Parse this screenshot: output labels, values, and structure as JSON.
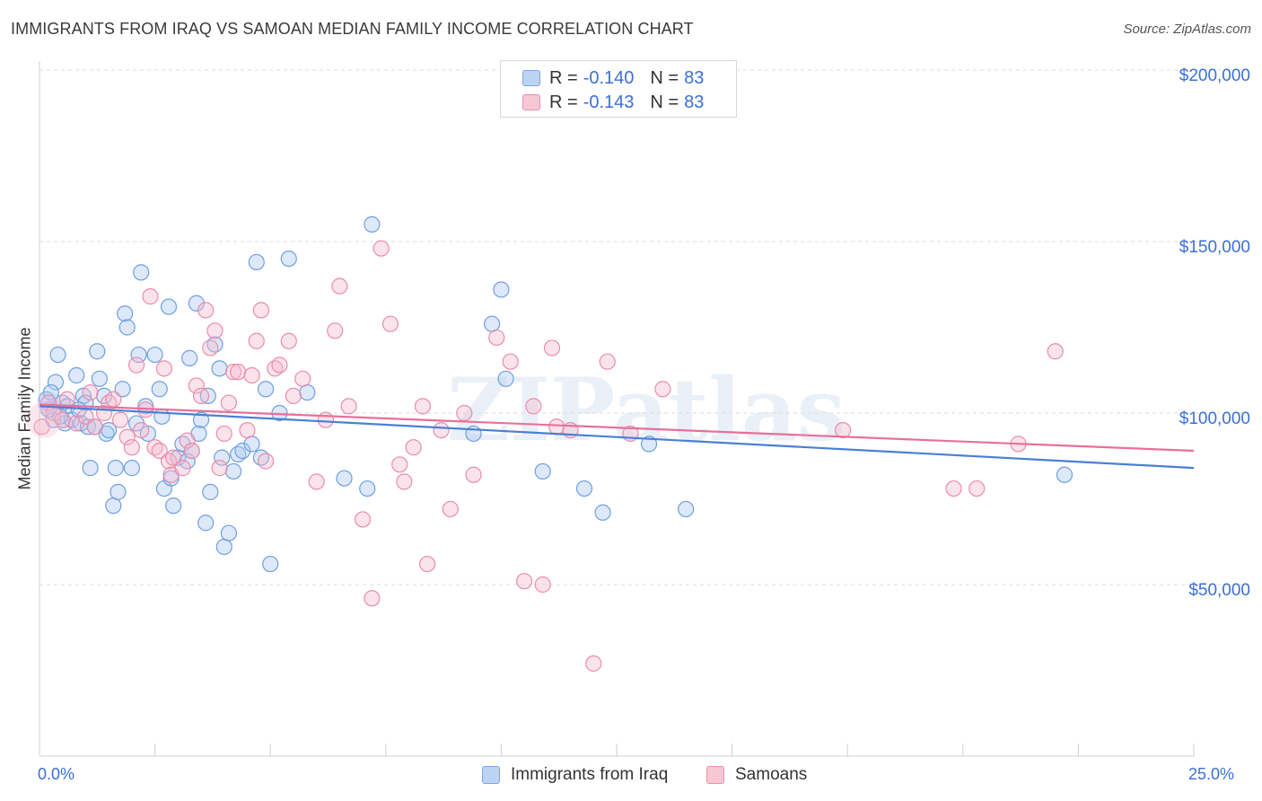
{
  "title": "IMMIGRANTS FROM IRAQ VS SAMOAN MEDIAN FAMILY INCOME CORRELATION CHART",
  "source": "Source: ZipAtlas.com",
  "watermark": "ZIPatlas",
  "legend": {
    "rows": [
      {
        "r_label": "R =",
        "r_value": "-0.140",
        "n_label": "N =",
        "n_value": "83",
        "color": "#7aa6e6",
        "fill": "#bcd3f3"
      },
      {
        "r_label": "R =",
        "r_value": "-0.143",
        "n_label": "N =",
        "n_value": "83",
        "color": "#ee8fab",
        "fill": "#f8c7d5"
      }
    ]
  },
  "bottom_legend": [
    {
      "label": "Immigrants from Iraq",
      "color": "#7aa6e6",
      "fill": "#bcd3f3"
    },
    {
      "label": "Samoans",
      "color": "#ee8fab",
      "fill": "#f8c7d5"
    }
  ],
  "chart_data": {
    "type": "scatter",
    "title": "IMMIGRANTS FROM IRAQ VS SAMOAN MEDIAN FAMILY INCOME CORRELATION CHART",
    "xlabel": "",
    "ylabel": "Median Family Income",
    "xlim": [
      0,
      25
    ],
    "ylim": [
      0,
      200000
    ],
    "x_tick_labels": [
      "0.0%",
      "25.0%"
    ],
    "y_ticks": [
      50000,
      100000,
      150000,
      200000
    ],
    "y_tick_labels": [
      "$50,000",
      "$100,000",
      "$150,000",
      "$200,000"
    ],
    "grid": true,
    "legend_position": "top-center",
    "series": [
      {
        "name": "Immigrants from Iraq",
        "color": "#4a7fd6",
        "trend": {
          "x": [
            0,
            25
          ],
          "y": [
            102000,
            84000
          ]
        },
        "points": [
          [
            0.15,
            104000
          ],
          [
            0.2,
            101000
          ],
          [
            0.3,
            98000
          ],
          [
            0.35,
            109000
          ],
          [
            0.4,
            117000
          ],
          [
            0.5,
            103000
          ],
          [
            0.55,
            97000
          ],
          [
            0.6,
            102000
          ],
          [
            0.7,
            98000
          ],
          [
            0.8,
            111000
          ],
          [
            0.9,
            97000
          ],
          [
            0.95,
            105000
          ],
          [
            1.0,
            103000
          ],
          [
            1.05,
            96000
          ],
          [
            1.1,
            84000
          ],
          [
            1.2,
            96000
          ],
          [
            1.25,
            118000
          ],
          [
            1.3,
            110000
          ],
          [
            1.4,
            105000
          ],
          [
            1.45,
            94000
          ],
          [
            1.5,
            95000
          ],
          [
            1.6,
            73000
          ],
          [
            1.65,
            84000
          ],
          [
            1.7,
            77000
          ],
          [
            1.8,
            107000
          ],
          [
            1.85,
            129000
          ],
          [
            1.9,
            125000
          ],
          [
            2.0,
            84000
          ],
          [
            2.1,
            97000
          ],
          [
            2.15,
            117000
          ],
          [
            2.2,
            141000
          ],
          [
            2.3,
            102000
          ],
          [
            2.35,
            94000
          ],
          [
            2.5,
            117000
          ],
          [
            2.6,
            107000
          ],
          [
            2.65,
            99000
          ],
          [
            2.7,
            78000
          ],
          [
            2.8,
            131000
          ],
          [
            2.85,
            81000
          ],
          [
            2.9,
            73000
          ],
          [
            3.0,
            87000
          ],
          [
            3.1,
            91000
          ],
          [
            3.2,
            86000
          ],
          [
            3.25,
            116000
          ],
          [
            3.3,
            89000
          ],
          [
            3.4,
            132000
          ],
          [
            3.45,
            94000
          ],
          [
            3.5,
            98000
          ],
          [
            3.6,
            68000
          ],
          [
            3.65,
            105000
          ],
          [
            3.7,
            77000
          ],
          [
            3.8,
            120000
          ],
          [
            3.9,
            113000
          ],
          [
            3.95,
            87000
          ],
          [
            4.0,
            61000
          ],
          [
            4.1,
            65000
          ],
          [
            4.2,
            83000
          ],
          [
            4.3,
            88000
          ],
          [
            4.4,
            89000
          ],
          [
            4.6,
            91000
          ],
          [
            4.7,
            144000
          ],
          [
            4.8,
            87000
          ],
          [
            4.9,
            107000
          ],
          [
            5.0,
            56000
          ],
          [
            5.2,
            100000
          ],
          [
            5.4,
            145000
          ],
          [
            5.8,
            106000
          ],
          [
            6.6,
            81000
          ],
          [
            7.1,
            78000
          ],
          [
            7.2,
            155000
          ],
          [
            9.4,
            94000
          ],
          [
            9.8,
            126000
          ],
          [
            10.0,
            136000
          ],
          [
            10.1,
            110000
          ],
          [
            10.9,
            83000
          ],
          [
            11.8,
            78000
          ],
          [
            12.2,
            71000
          ],
          [
            13.2,
            91000
          ],
          [
            14.0,
            72000
          ],
          [
            22.2,
            82000
          ],
          [
            0.25,
            106000
          ],
          [
            0.45,
            99000
          ],
          [
            0.85,
            101000
          ]
        ]
      },
      {
        "name": "Samoans",
        "color": "#e8709a",
        "trend": {
          "x": [
            0,
            25
          ],
          "y": [
            102500,
            89000
          ]
        },
        "points": [
          [
            0.05,
            96000
          ],
          [
            0.2,
            103000
          ],
          [
            0.3,
            100000
          ],
          [
            0.5,
            98000
          ],
          [
            0.6,
            104000
          ],
          [
            0.8,
            97000
          ],
          [
            1.0,
            99000
          ],
          [
            1.1,
            106000
          ],
          [
            1.2,
            96000
          ],
          [
            1.4,
            100000
          ],
          [
            1.5,
            103000
          ],
          [
            1.6,
            104000
          ],
          [
            1.75,
            98000
          ],
          [
            1.9,
            93000
          ],
          [
            2.0,
            90000
          ],
          [
            2.1,
            114000
          ],
          [
            2.2,
            95000
          ],
          [
            2.3,
            101000
          ],
          [
            2.4,
            134000
          ],
          [
            2.5,
            90000
          ],
          [
            2.6,
            89000
          ],
          [
            2.7,
            113000
          ],
          [
            2.8,
            86000
          ],
          [
            2.85,
            82000
          ],
          [
            2.9,
            87000
          ],
          [
            3.1,
            84000
          ],
          [
            3.2,
            92000
          ],
          [
            3.3,
            89000
          ],
          [
            3.4,
            108000
          ],
          [
            3.5,
            105000
          ],
          [
            3.6,
            130000
          ],
          [
            3.7,
            119000
          ],
          [
            3.8,
            124000
          ],
          [
            3.9,
            84000
          ],
          [
            4.0,
            94000
          ],
          [
            4.1,
            103000
          ],
          [
            4.2,
            112000
          ],
          [
            4.3,
            112000
          ],
          [
            4.5,
            95000
          ],
          [
            4.6,
            111000
          ],
          [
            4.7,
            121000
          ],
          [
            4.8,
            130000
          ],
          [
            4.9,
            86000
          ],
          [
            5.1,
            113000
          ],
          [
            5.2,
            114000
          ],
          [
            5.4,
            121000
          ],
          [
            5.5,
            105000
          ],
          [
            5.7,
            110000
          ],
          [
            6.0,
            80000
          ],
          [
            6.2,
            98000
          ],
          [
            6.4,
            124000
          ],
          [
            6.5,
            137000
          ],
          [
            6.7,
            102000
          ],
          [
            7.0,
            69000
          ],
          [
            7.2,
            46000
          ],
          [
            7.4,
            148000
          ],
          [
            7.6,
            126000
          ],
          [
            7.8,
            85000
          ],
          [
            7.9,
            80000
          ],
          [
            8.1,
            90000
          ],
          [
            8.3,
            102000
          ],
          [
            8.4,
            56000
          ],
          [
            8.7,
            95000
          ],
          [
            8.9,
            72000
          ],
          [
            9.2,
            100000
          ],
          [
            9.4,
            82000
          ],
          [
            9.9,
            122000
          ],
          [
            10.2,
            115000
          ],
          [
            10.5,
            51000
          ],
          [
            10.7,
            102000
          ],
          [
            10.9,
            50000
          ],
          [
            11.1,
            119000
          ],
          [
            11.2,
            96000
          ],
          [
            11.5,
            95000
          ],
          [
            12.0,
            27000
          ],
          [
            12.3,
            115000
          ],
          [
            12.8,
            94000
          ],
          [
            13.5,
            107000
          ],
          [
            17.4,
            95000
          ],
          [
            19.8,
            78000
          ],
          [
            20.3,
            78000
          ],
          [
            21.2,
            91000
          ],
          [
            22.0,
            118000
          ]
        ]
      }
    ]
  }
}
